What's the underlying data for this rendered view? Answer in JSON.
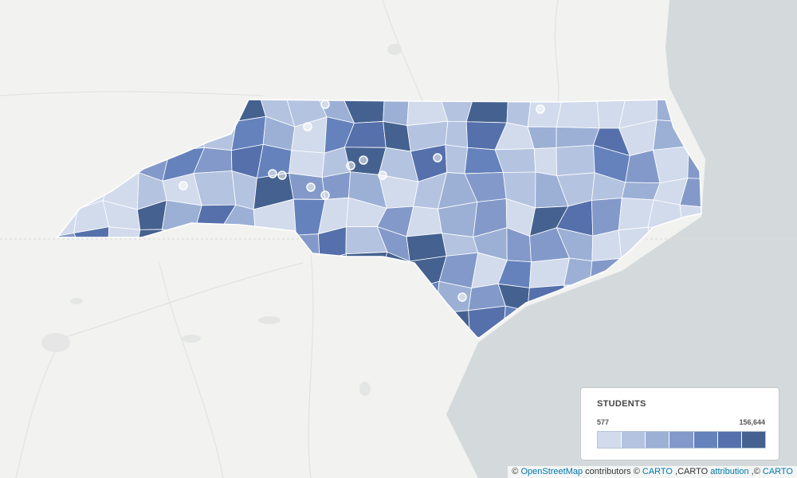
{
  "legend": {
    "title": "STUDENTS",
    "min": 577,
    "max": {
      "value": 156644,
      "label": "156,644"
    },
    "colors": [
      "#d2dbec",
      "#b4c3e0",
      "#9cb0d6",
      "#8399c9",
      "#6582bd",
      "#5570ab",
      "#44618f"
    ]
  },
  "attribution": {
    "segments": [
      {
        "text": "©"
      },
      {
        "link": "OpenStreetMap"
      },
      {
        "text": "contributors ©"
      },
      {
        "link": "CARTO"
      },
      {
        "text": ",CARTO"
      },
      {
        "link": "attribution"
      },
      {
        "text": ",©"
      },
      {
        "link": "CARTO"
      }
    ]
  }
}
